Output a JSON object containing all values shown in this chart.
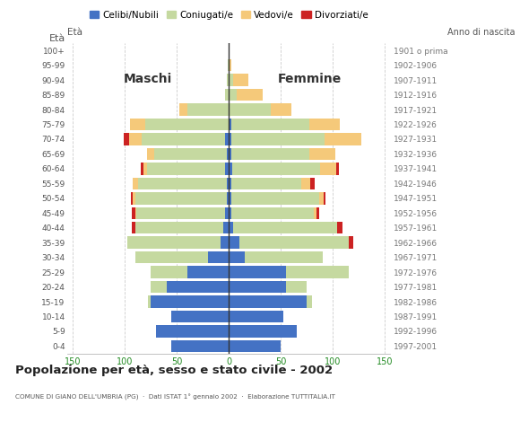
{
  "age_groups": [
    "0-4",
    "5-9",
    "10-14",
    "15-19",
    "20-24",
    "25-29",
    "30-34",
    "35-39",
    "40-44",
    "45-49",
    "50-54",
    "55-59",
    "60-64",
    "65-69",
    "70-74",
    "75-79",
    "80-84",
    "85-89",
    "90-94",
    "95-99",
    "100+"
  ],
  "birth_years": [
    "1997-2001",
    "1992-1996",
    "1987-1991",
    "1982-1986",
    "1977-1981",
    "1972-1976",
    "1967-1971",
    "1962-1966",
    "1957-1961",
    "1952-1956",
    "1947-1951",
    "1942-1946",
    "1937-1941",
    "1932-1936",
    "1927-1931",
    "1922-1926",
    "1917-1921",
    "1912-1916",
    "1907-1911",
    "1902-1906",
    "1901 o prima"
  ],
  "males": {
    "celibi": [
      55,
      70,
      55,
      75,
      60,
      40,
      20,
      8,
      5,
      4,
      2,
      2,
      4,
      2,
      4,
      0,
      0,
      0,
      0,
      0,
      0
    ],
    "coniugati": [
      0,
      0,
      0,
      3,
      15,
      35,
      70,
      90,
      85,
      85,
      88,
      85,
      75,
      70,
      80,
      80,
      40,
      4,
      2,
      1,
      0
    ],
    "vedovi": [
      0,
      0,
      0,
      0,
      0,
      0,
      0,
      0,
      0,
      1,
      2,
      5,
      3,
      7,
      12,
      15,
      8,
      0,
      0,
      0,
      0
    ],
    "divorziati": [
      0,
      0,
      0,
      0,
      0,
      0,
      0,
      0,
      3,
      3,
      2,
      0,
      3,
      0,
      5,
      0,
      0,
      0,
      0,
      0,
      0
    ]
  },
  "females": {
    "nubili": [
      50,
      65,
      52,
      75,
      55,
      55,
      15,
      10,
      4,
      2,
      2,
      2,
      3,
      2,
      2,
      2,
      0,
      0,
      0,
      0,
      0
    ],
    "coniugate": [
      0,
      0,
      0,
      5,
      20,
      60,
      75,
      105,
      100,
      80,
      85,
      68,
      85,
      75,
      90,
      75,
      40,
      8,
      4,
      1,
      0
    ],
    "vedove": [
      0,
      0,
      0,
      0,
      0,
      0,
      0,
      0,
      0,
      2,
      4,
      8,
      15,
      25,
      35,
      30,
      20,
      25,
      15,
      1,
      0
    ],
    "divorziate": [
      0,
      0,
      0,
      0,
      0,
      0,
      0,
      5,
      5,
      3,
      2,
      5,
      3,
      0,
      0,
      0,
      0,
      0,
      0,
      0,
      0
    ]
  },
  "colors": {
    "celibi": "#4472c4",
    "coniugati": "#c5d9a0",
    "vedovi": "#f5c97a",
    "divorziati": "#cc2222"
  },
  "title": "Popolazione per età, sesso e stato civile - 2002",
  "subtitle": "COMUNE DI GIANO DELL'UMBRIA (PG)  ·  Dati ISTAT 1° gennaio 2002  ·  Elaborazione TUTTITALIA.IT",
  "xlabel_left": "Maschi",
  "xlabel_right": "Femmine",
  "ylabel_left": "Età",
  "ylabel_right": "Anno di nascita",
  "xlim": 155,
  "bg_color": "#ffffff",
  "legend_labels": [
    "Celibi/Nubili",
    "Coniugati/e",
    "Vedovi/e",
    "Divorziati/e"
  ]
}
